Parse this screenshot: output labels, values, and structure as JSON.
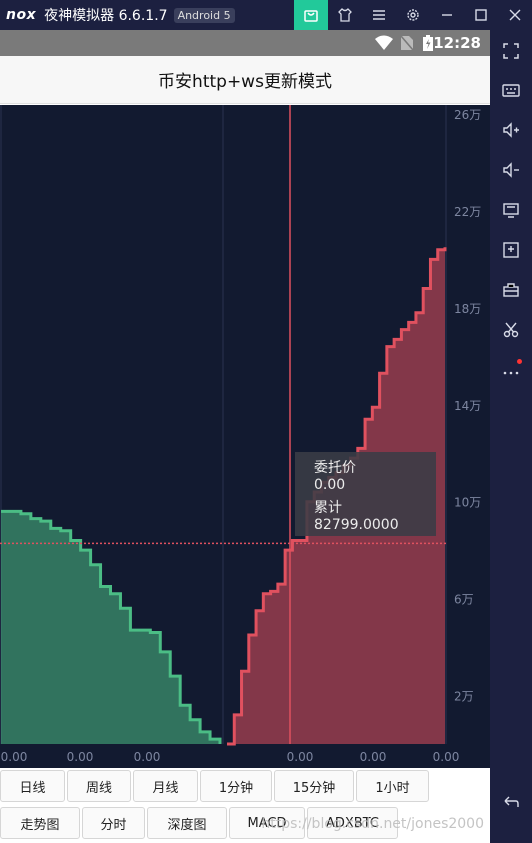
{
  "emulator": {
    "logo": "nox",
    "title": "夜神模拟器 6.6.1.7",
    "badge": "Android 5",
    "controls": [
      "shop-icon",
      "skin-icon",
      "menu-icon",
      "settings-icon",
      "minimize-icon",
      "maximize-icon",
      "close-icon"
    ],
    "sidebar": [
      "fullscreen-icon",
      "keyboard-icon",
      "volume-up-icon",
      "volume-down-icon",
      "screen-icon",
      "apk-icon",
      "toolbox-icon",
      "scissors-icon",
      "more-icon",
      "back-icon"
    ]
  },
  "status_bar": {
    "time": "12:28"
  },
  "app_bar": {
    "title": "币安http+ws更新模式"
  },
  "tooltip": {
    "price_label": "委托价",
    "price_value": "0.00",
    "total_label": "累计",
    "total_value": "82799.0000"
  },
  "chart_data": {
    "type": "area",
    "y_ticks": [
      "26万",
      "22万",
      "18万",
      "14万",
      "10万",
      "6万",
      "2万"
    ],
    "x_ticks": [
      "0.00",
      "0.00",
      "0.00",
      "0.00",
      "0.00",
      "0.00"
    ],
    "ylim": [
      0,
      260000
    ],
    "colors": {
      "bid": "#4bbd85",
      "ask": "#e0515f",
      "crosshair": "#e0515f"
    },
    "bids_cumulative": [
      96000,
      96000,
      95000,
      93000,
      92000,
      89000,
      88000,
      84000,
      80000,
      74000,
      65000,
      62000,
      56000,
      47000,
      47000,
      46000,
      38000,
      28000,
      16000,
      10000,
      5000,
      2000,
      0
    ],
    "asks_cumulative": [
      0,
      12000,
      30000,
      45000,
      55000,
      62000,
      63000,
      66000,
      80000,
      84000,
      84000,
      100000,
      104000,
      108000,
      110000,
      112000,
      115000,
      118000,
      122000,
      134000,
      139000,
      153000,
      164000,
      167000,
      171000,
      174000,
      178000,
      188000,
      200000,
      204000,
      205000
    ],
    "crosshair_value": 82799
  },
  "buttons_row1": [
    "日线",
    "周线",
    "月线",
    "1分钟",
    "15分钟",
    "1小时"
  ],
  "buttons_row2": [
    "走势图",
    "分时",
    "深度图",
    "MACD",
    "ADXBTC"
  ],
  "watermark": "https://blog.csdn.net/jones2000"
}
